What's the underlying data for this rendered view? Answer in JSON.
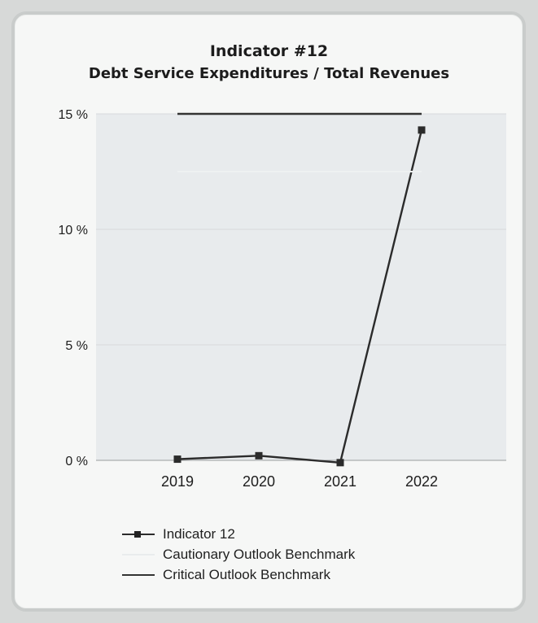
{
  "chart_data": {
    "type": "line",
    "title": "Indicator #12",
    "subtitle": "Debt Service Expenditures / Total Revenues",
    "categories": [
      "2019",
      "2020",
      "2021",
      "2022"
    ],
    "y_ticks": [
      "0 %",
      "5 %",
      "10 %",
      "15 %"
    ],
    "ylim": [
      0,
      15
    ],
    "grid": true,
    "legend_position": "bottom",
    "series": [
      {
        "name": "Indicator 12",
        "values": [
          0.05,
          0.2,
          -0.1,
          14.3
        ],
        "color": "#2b2b2b",
        "marker": "square"
      },
      {
        "name": "Cautionary Outlook Benchmark",
        "values": [
          12.5,
          12.5,
          12.5,
          12.5
        ],
        "color": "#eef1f2",
        "marker": "none"
      },
      {
        "name": "Critical Outlook Benchmark",
        "values": [
          15,
          15,
          15,
          15
        ],
        "color": "#333333",
        "marker": "none"
      }
    ],
    "colors": {
      "plot_background": "#e8ebed",
      "gridline": "#d7dadc"
    }
  }
}
